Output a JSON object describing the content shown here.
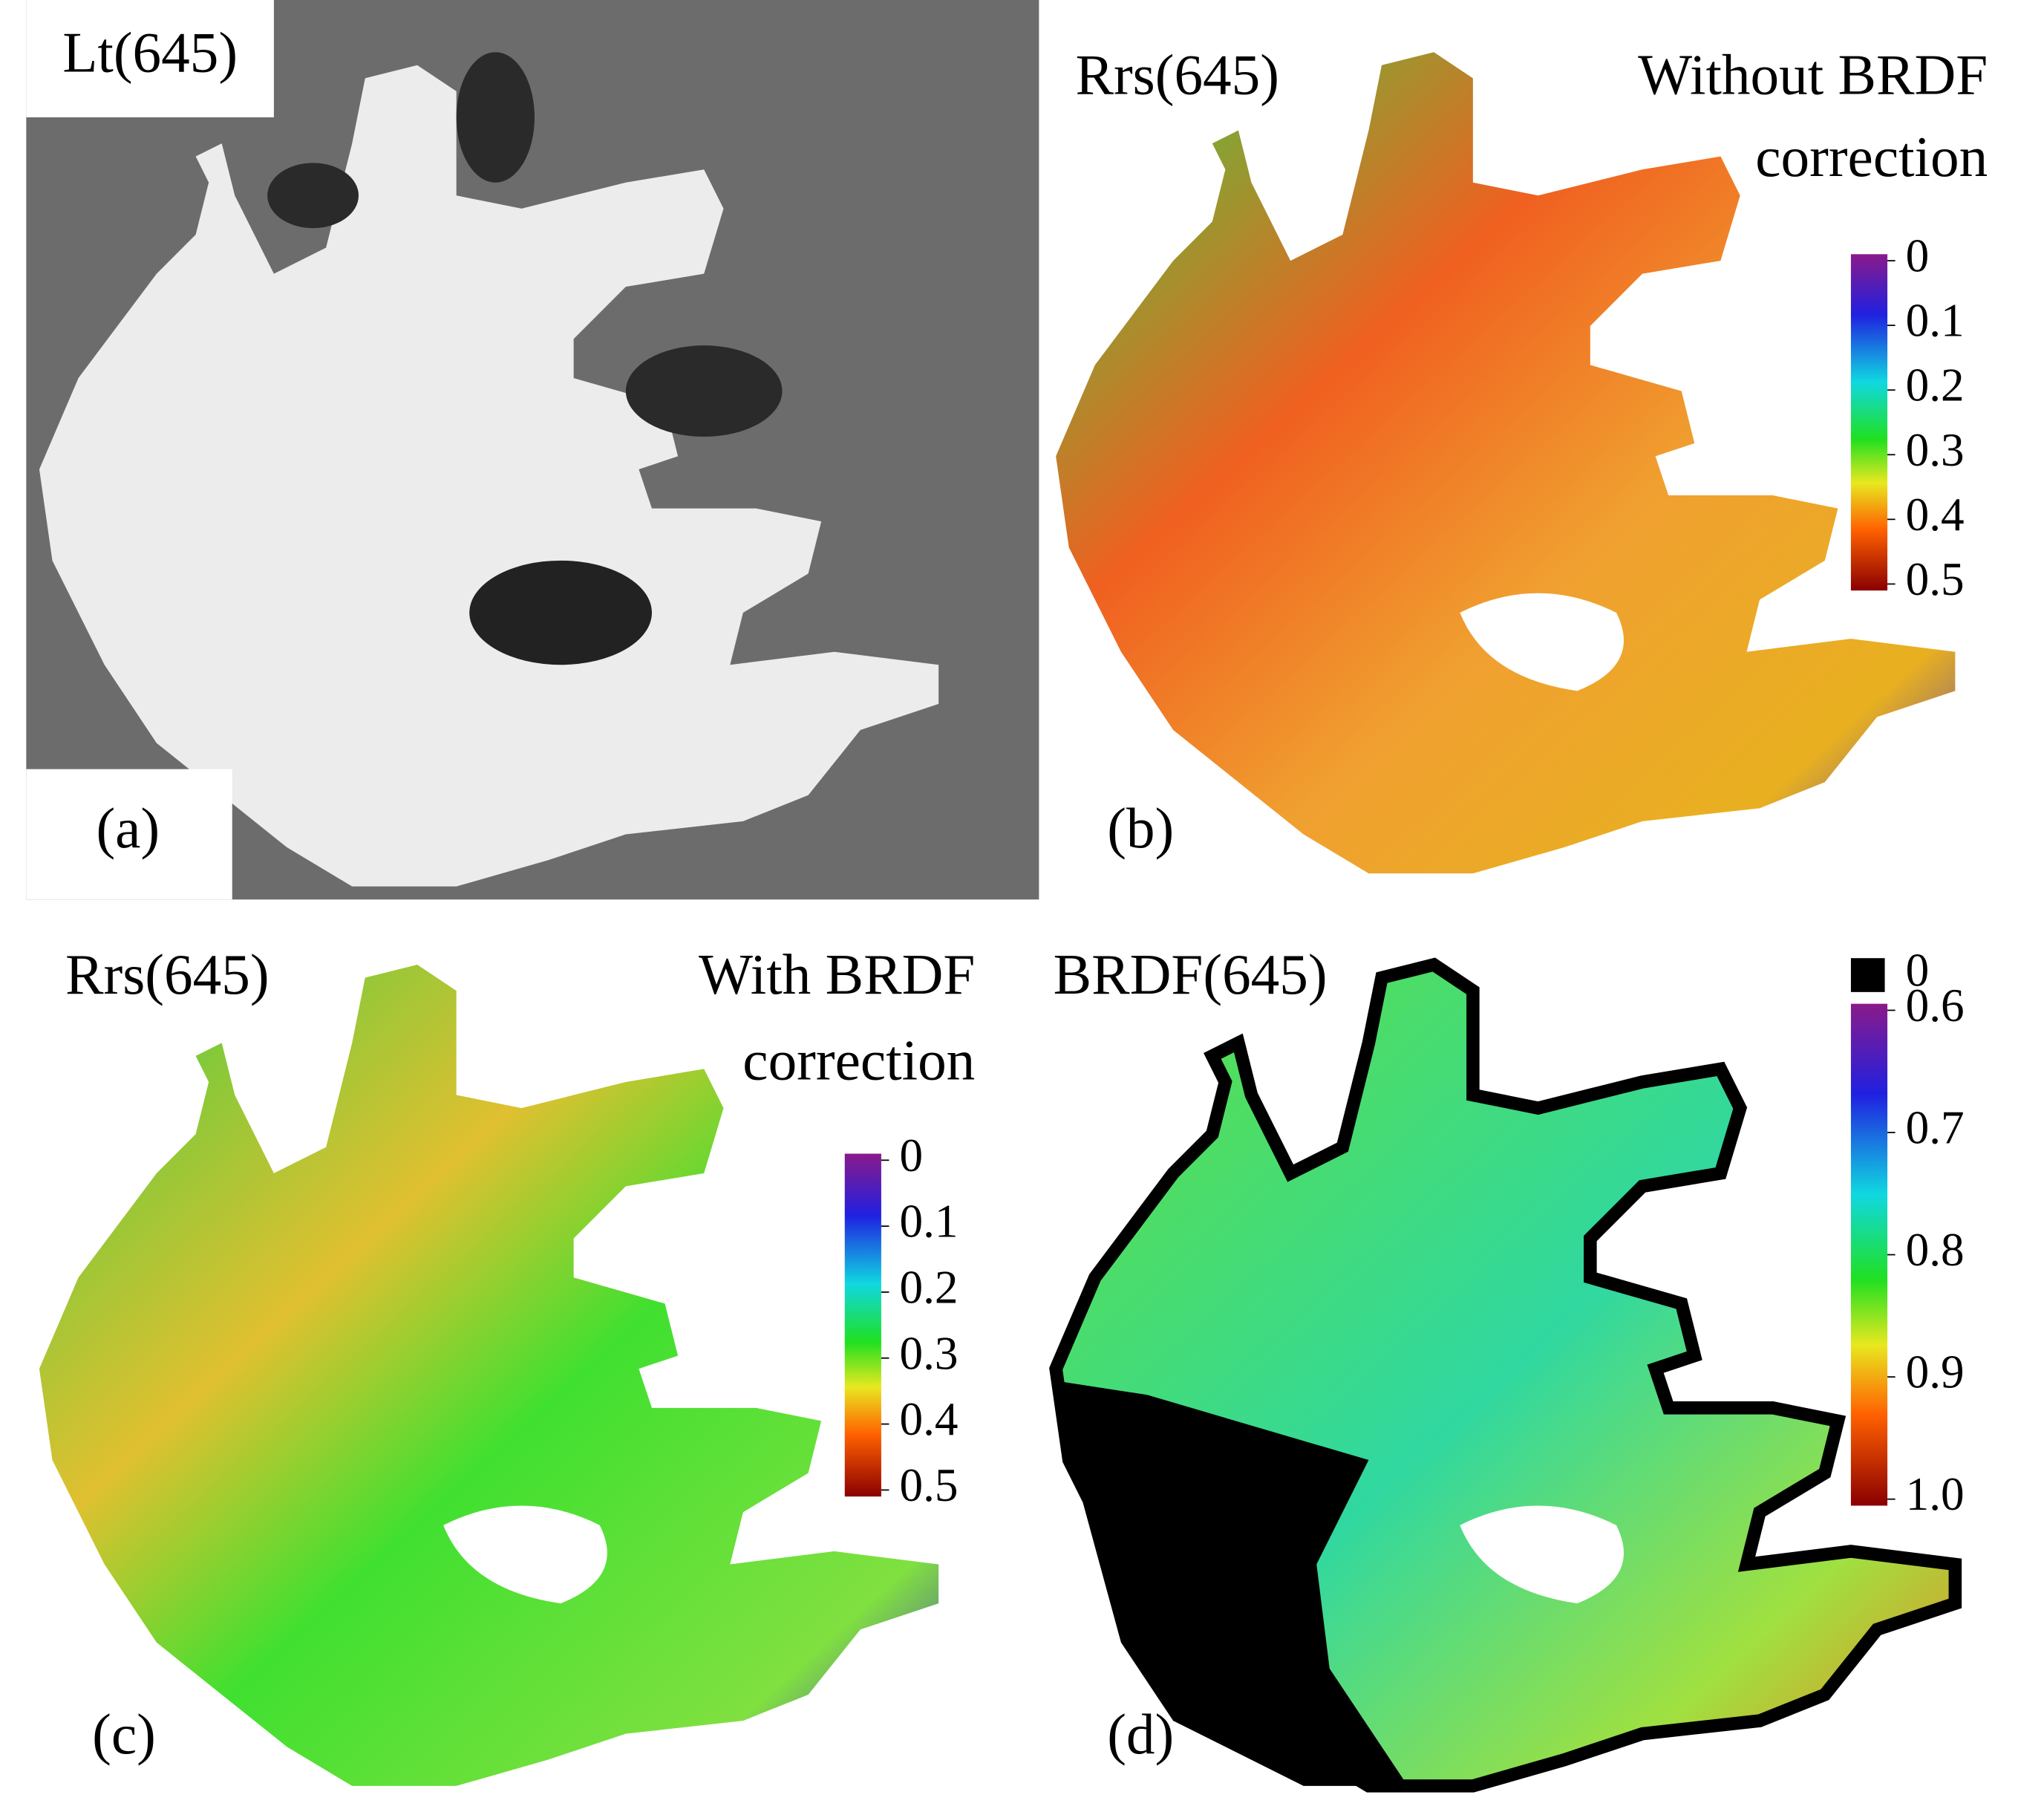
{
  "panels": [
    {
      "title": "Lt(645)",
      "label": "(a)"
    },
    {
      "title": "Rrs(645)",
      "note": [
        "Without BRDF",
        "correction"
      ],
      "label": "(b)",
      "colorbar": {
        "lim": [
          0,
          0.5
        ],
        "ticks": [
          0,
          0.1,
          0.2,
          0.3,
          0.4,
          0.5
        ]
      }
    },
    {
      "title": "Rrs(645)",
      "note": [
        "With BRDF",
        "correction"
      ],
      "label": "(c)",
      "colorbar": {
        "lim": [
          0,
          0.5
        ],
        "ticks": [
          0,
          0.1,
          0.2,
          0.3,
          0.4,
          0.5
        ]
      }
    },
    {
      "title": "BRDF(645)",
      "label": "(d)",
      "colorbar": {
        "mask_tick": 0,
        "lim": [
          0.6,
          1
        ],
        "ticks": [
          0.6,
          0.7,
          0.8,
          0.9,
          {
            "value": 1,
            "label": "1.0"
          }
        ]
      }
    }
  ]
}
